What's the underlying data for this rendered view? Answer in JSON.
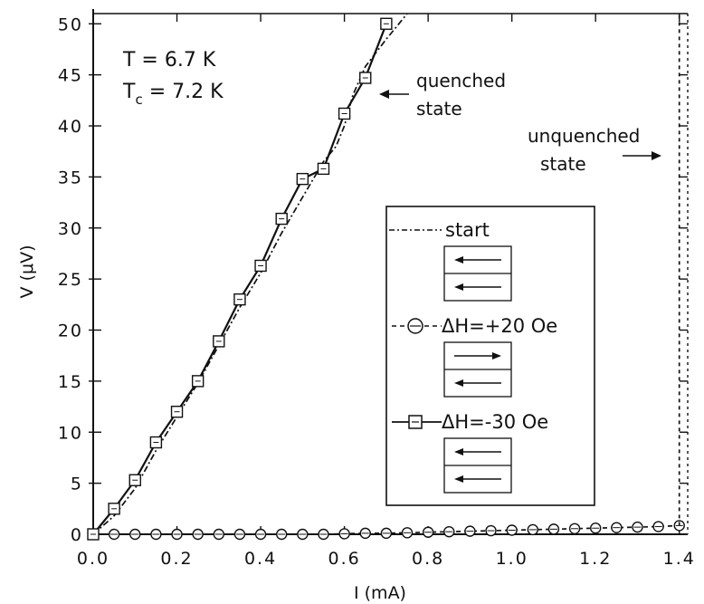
{
  "chart_data": {
    "type": "line",
    "xlabel": "I (mA)",
    "ylabel": "V (μV)",
    "xlim": [
      0.0,
      1.42
    ],
    "ylim": [
      0,
      51
    ],
    "xticks": [
      0.0,
      0.2,
      0.4,
      0.6,
      0.8,
      1.0,
      1.2,
      1.4
    ],
    "xtick_labels": [
      "0.0",
      "0.2",
      "0.4",
      "0.6",
      "0.8",
      "1.0",
      "1.2",
      "1.4"
    ],
    "yticks": [
      0,
      5,
      10,
      15,
      20,
      25,
      30,
      35,
      40,
      45,
      50
    ],
    "ytick_labels": [
      "0",
      "5",
      "10",
      "15",
      "20",
      "25",
      "30",
      "35",
      "40",
      "45",
      "50"
    ],
    "grid": false,
    "annotations": {
      "temperature": "T = 6.7 K",
      "tc_prefix": "T",
      "tc_sub": "c",
      "tc_value": " = 7.2 K",
      "quenched_line1": "quenched",
      "quenched_line2": "state",
      "unquenched_line1": "unquenched",
      "unquenched_line2": "state"
    },
    "legend": {
      "position": "center-right",
      "entries": [
        "start",
        "ΔH=+20 Oe",
        "ΔH=-30 Oe"
      ]
    },
    "series": [
      {
        "name": "start",
        "style": "dash-dot",
        "color": "#111111",
        "points": [
          [
            0.0,
            0.0
          ],
          [
            0.05,
            1.8
          ],
          [
            0.1,
            4.5
          ],
          [
            0.15,
            8.2
          ],
          [
            0.2,
            11.5
          ],
          [
            0.25,
            14.8
          ],
          [
            0.3,
            18.5
          ],
          [
            0.35,
            22.2
          ],
          [
            0.4,
            25.6
          ],
          [
            0.45,
            29.5
          ],
          [
            0.5,
            33.0
          ],
          [
            0.55,
            36.5
          ],
          [
            0.58,
            38.0
          ],
          [
            0.6,
            40.0
          ],
          [
            0.62,
            43.0
          ],
          [
            0.65,
            45.8
          ],
          [
            0.7,
            48.5
          ],
          [
            0.73,
            50.0
          ],
          [
            0.75,
            51.0
          ]
        ]
      },
      {
        "name": "ΔH=+20 Oe",
        "style": "dashed",
        "marker": "circle",
        "color": "#111111",
        "points": [
          [
            0.05,
            0.0
          ],
          [
            0.1,
            0.0
          ],
          [
            0.15,
            0.0
          ],
          [
            0.2,
            0.0
          ],
          [
            0.25,
            0.0
          ],
          [
            0.3,
            0.0
          ],
          [
            0.35,
            0.0
          ],
          [
            0.4,
            0.0
          ],
          [
            0.45,
            0.0
          ],
          [
            0.5,
            0.0
          ],
          [
            0.55,
            0.0
          ],
          [
            0.6,
            0.05
          ],
          [
            0.65,
            0.1
          ],
          [
            0.7,
            0.1
          ],
          [
            0.75,
            0.15
          ],
          [
            0.8,
            0.2
          ],
          [
            0.85,
            0.25
          ],
          [
            0.9,
            0.3
          ],
          [
            0.95,
            0.35
          ],
          [
            1.0,
            0.4
          ],
          [
            1.05,
            0.45
          ],
          [
            1.1,
            0.5
          ],
          [
            1.15,
            0.55
          ],
          [
            1.2,
            0.6
          ],
          [
            1.25,
            0.65
          ],
          [
            1.3,
            0.7
          ],
          [
            1.35,
            0.75
          ],
          [
            1.4,
            0.85
          ]
        ]
      },
      {
        "name": "ΔH=-30 Oe",
        "style": "solid",
        "marker": "square",
        "color": "#111111",
        "points": [
          [
            0.0,
            0.0
          ],
          [
            0.05,
            2.5
          ],
          [
            0.1,
            5.3
          ],
          [
            0.15,
            9.0
          ],
          [
            0.2,
            12.0
          ],
          [
            0.25,
            15.0
          ],
          [
            0.3,
            18.9
          ],
          [
            0.35,
            23.0
          ],
          [
            0.4,
            26.3
          ],
          [
            0.45,
            30.9
          ],
          [
            0.5,
            34.8
          ],
          [
            0.55,
            35.8
          ],
          [
            0.6,
            41.2
          ],
          [
            0.65,
            44.7
          ],
          [
            0.7,
            50.0
          ]
        ]
      },
      {
        "name": "unquenched",
        "style": "short-dash",
        "color": "#111111",
        "points": [
          [
            1.4,
            0.85
          ],
          [
            1.4,
            51.0
          ]
        ]
      }
    ]
  }
}
